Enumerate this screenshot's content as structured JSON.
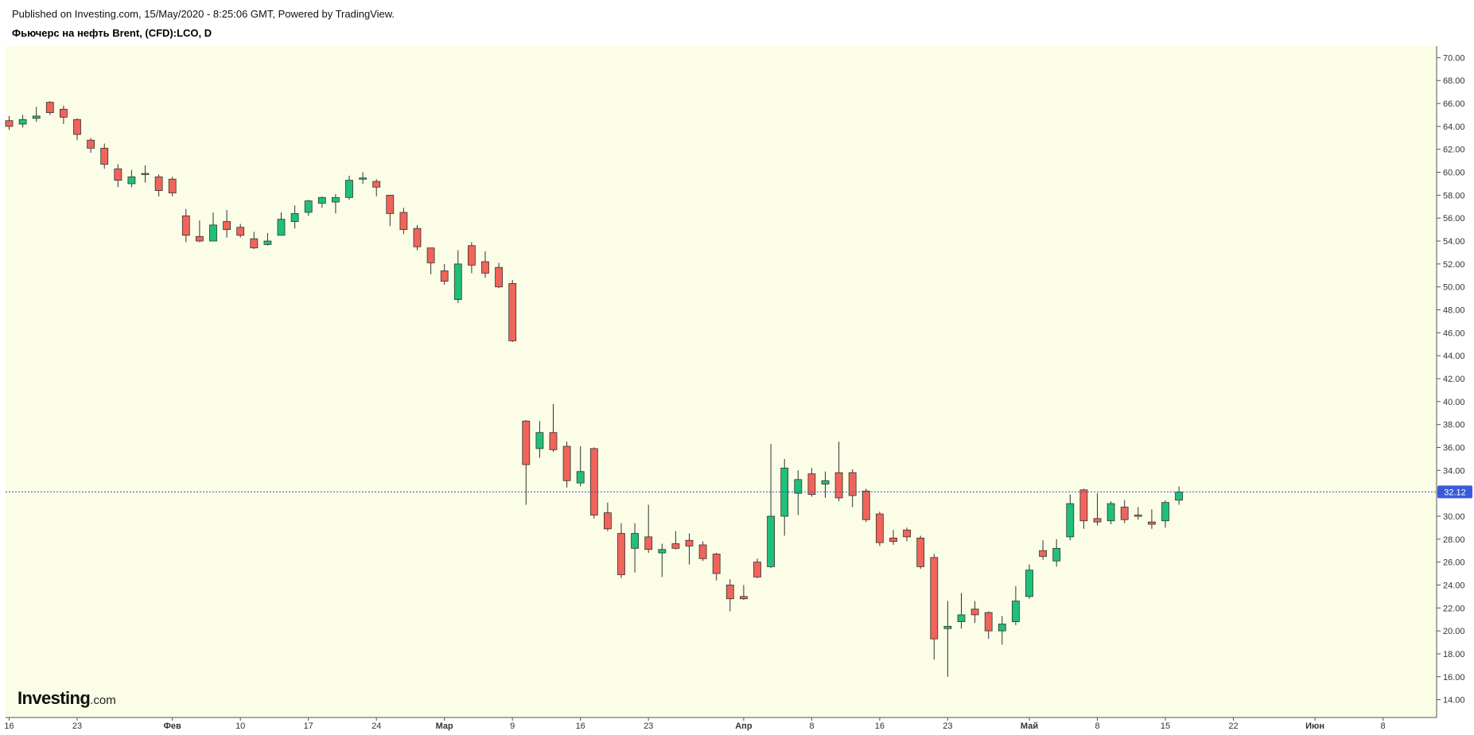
{
  "header": {
    "published": "Published on Investing.com, 15/May/2020 - 8:25:06 GMT, Powered by TradingView.",
    "title": "Фьючерс на нефть Brent, (CFD):LCO, D"
  },
  "logo": {
    "main": "Investing",
    "suffix": ".com"
  },
  "colors": {
    "background": "#fbfde6",
    "up": "#1fc07a",
    "down": "#f0645a",
    "wick": "#333333",
    "last_price_line": "#3355cc",
    "last_price_label": "#3b5bdb"
  },
  "chart_data": {
    "type": "candlestick",
    "title": "Фьючерс на нефть Brent, (CFD):LCO, D",
    "ylim": [
      13,
      71
    ],
    "y_ticks": [
      "14.00",
      "16.00",
      "18.00",
      "20.00",
      "22.00",
      "24.00",
      "26.00",
      "28.00",
      "30.00",
      "32.00",
      "34.00",
      "36.00",
      "38.00",
      "40.00",
      "42.00",
      "44.00",
      "46.00",
      "48.00",
      "50.00",
      "52.00",
      "54.00",
      "56.00",
      "58.00",
      "60.00",
      "62.00",
      "64.00",
      "66.00",
      "68.00",
      "70.00"
    ],
    "x_ticks": [
      {
        "label": "16",
        "slot": 0,
        "bold": false
      },
      {
        "label": "23",
        "slot": 5,
        "bold": false
      },
      {
        "label": "Фев",
        "slot": 12,
        "bold": true
      },
      {
        "label": "10",
        "slot": 17,
        "bold": false
      },
      {
        "label": "17",
        "slot": 22,
        "bold": false
      },
      {
        "label": "24",
        "slot": 27,
        "bold": false
      },
      {
        "label": "Мар",
        "slot": 32,
        "bold": true
      },
      {
        "label": "9",
        "slot": 37,
        "bold": false
      },
      {
        "label": "16",
        "slot": 42,
        "bold": false
      },
      {
        "label": "23",
        "slot": 47,
        "bold": false
      },
      {
        "label": "Апр",
        "slot": 54,
        "bold": true
      },
      {
        "label": "8",
        "slot": 59,
        "bold": false
      },
      {
        "label": "16",
        "slot": 64,
        "bold": false
      },
      {
        "label": "23",
        "slot": 69,
        "bold": false
      },
      {
        "label": "Май",
        "slot": 75,
        "bold": true
      },
      {
        "label": "8",
        "slot": 80,
        "bold": false
      },
      {
        "label": "15",
        "slot": 85,
        "bold": false
      },
      {
        "label": "22",
        "slot": 90,
        "bold": false
      },
      {
        "label": "Июн",
        "slot": 96,
        "bold": true
      },
      {
        "label": "8",
        "slot": 101,
        "bold": false
      }
    ],
    "last_price": "32.12",
    "candles": [
      {
        "slot": 0,
        "o": 64.5,
        "h": 64.9,
        "l": 63.7,
        "c": 64.0
      },
      {
        "slot": 1,
        "o": 64.2,
        "h": 65.0,
        "l": 63.9,
        "c": 64.6
      },
      {
        "slot": 2,
        "o": 64.7,
        "h": 65.7,
        "l": 64.4,
        "c": 64.9
      },
      {
        "slot": 3,
        "o": 66.1,
        "h": 66.2,
        "l": 65.0,
        "c": 65.2
      },
      {
        "slot": 4,
        "o": 65.5,
        "h": 65.8,
        "l": 64.2,
        "c": 64.8
      },
      {
        "slot": 5,
        "o": 64.6,
        "h": 64.7,
        "l": 62.8,
        "c": 63.3
      },
      {
        "slot": 6,
        "o": 62.8,
        "h": 63.0,
        "l": 61.7,
        "c": 62.1
      },
      {
        "slot": 7,
        "o": 62.1,
        "h": 62.5,
        "l": 60.3,
        "c": 60.7
      },
      {
        "slot": 8,
        "o": 60.3,
        "h": 60.7,
        "l": 58.7,
        "c": 59.3
      },
      {
        "slot": 9,
        "o": 59.0,
        "h": 60.2,
        "l": 58.7,
        "c": 59.6
      },
      {
        "slot": 10,
        "o": 59.8,
        "h": 60.6,
        "l": 59.1,
        "c": 59.9
      },
      {
        "slot": 11,
        "o": 59.6,
        "h": 59.8,
        "l": 57.9,
        "c": 58.4
      },
      {
        "slot": 12,
        "o": 59.4,
        "h": 59.6,
        "l": 57.9,
        "c": 58.2
      },
      {
        "slot": 13,
        "o": 56.2,
        "h": 56.8,
        "l": 53.9,
        "c": 54.5
      },
      {
        "slot": 14,
        "o": 54.4,
        "h": 55.8,
        "l": 53.9,
        "c": 54.0
      },
      {
        "slot": 15,
        "o": 54.0,
        "h": 56.5,
        "l": 54.0,
        "c": 55.4
      },
      {
        "slot": 16,
        "o": 55.7,
        "h": 56.7,
        "l": 54.3,
        "c": 55.0
      },
      {
        "slot": 17,
        "o": 55.2,
        "h": 55.5,
        "l": 54.3,
        "c": 54.5
      },
      {
        "slot": 18,
        "o": 54.2,
        "h": 54.8,
        "l": 53.3,
        "c": 53.4
      },
      {
        "slot": 19,
        "o": 53.7,
        "h": 54.7,
        "l": 53.6,
        "c": 54.0
      },
      {
        "slot": 20,
        "o": 54.5,
        "h": 56.5,
        "l": 54.5,
        "c": 55.9
      },
      {
        "slot": 21,
        "o": 55.7,
        "h": 57.1,
        "l": 55.1,
        "c": 56.4
      },
      {
        "slot": 22,
        "o": 56.5,
        "h": 57.6,
        "l": 56.2,
        "c": 57.5
      },
      {
        "slot": 23,
        "o": 57.3,
        "h": 57.9,
        "l": 56.9,
        "c": 57.8
      },
      {
        "slot": 24,
        "o": 57.4,
        "h": 58.1,
        "l": 56.4,
        "c": 57.8
      },
      {
        "slot": 25,
        "o": 57.8,
        "h": 59.7,
        "l": 57.6,
        "c": 59.3
      },
      {
        "slot": 26,
        "o": 59.4,
        "h": 60.0,
        "l": 59.0,
        "c": 59.5
      },
      {
        "slot": 27,
        "o": 59.2,
        "h": 59.4,
        "l": 57.9,
        "c": 58.7
      },
      {
        "slot": 28,
        "o": 58.0,
        "h": 58.0,
        "l": 55.3,
        "c": 56.4
      },
      {
        "slot": 29,
        "o": 56.5,
        "h": 56.9,
        "l": 54.6,
        "c": 55.0
      },
      {
        "slot": 30,
        "o": 55.1,
        "h": 55.4,
        "l": 53.2,
        "c": 53.5
      },
      {
        "slot": 31,
        "o": 53.4,
        "h": 53.4,
        "l": 51.1,
        "c": 52.1
      },
      {
        "slot": 32,
        "o": 51.4,
        "h": 52.0,
        "l": 50.2,
        "c": 50.5
      },
      {
        "slot": 33,
        "o": 48.9,
        "h": 53.2,
        "l": 48.6,
        "c": 52.0
      },
      {
        "slot": 34,
        "o": 53.6,
        "h": 53.9,
        "l": 51.2,
        "c": 51.9
      },
      {
        "slot": 35,
        "o": 52.2,
        "h": 53.1,
        "l": 50.8,
        "c": 51.2
      },
      {
        "slot": 36,
        "o": 51.7,
        "h": 52.1,
        "l": 49.9,
        "c": 50.0
      },
      {
        "slot": 37,
        "o": 50.3,
        "h": 50.6,
        "l": 45.2,
        "c": 45.3
      },
      {
        "slot": 38,
        "o": 38.3,
        "h": 38.4,
        "l": 31.0,
        "c": 34.5
      },
      {
        "slot": 39,
        "o": 35.9,
        "h": 38.3,
        "l": 35.1,
        "c": 37.3
      },
      {
        "slot": 40,
        "o": 37.3,
        "h": 39.8,
        "l": 35.6,
        "c": 35.8
      },
      {
        "slot": 41,
        "o": 36.1,
        "h": 36.5,
        "l": 32.5,
        "c": 33.1
      },
      {
        "slot": 42,
        "o": 32.9,
        "h": 36.1,
        "l": 32.6,
        "c": 33.9
      },
      {
        "slot": 43,
        "o": 35.9,
        "h": 36.0,
        "l": 29.8,
        "c": 30.1
      },
      {
        "slot": 44,
        "o": 30.3,
        "h": 31.2,
        "l": 28.7,
        "c": 28.9
      },
      {
        "slot": 45,
        "o": 28.5,
        "h": 29.4,
        "l": 24.6,
        "c": 24.9
      },
      {
        "slot": 46,
        "o": 27.2,
        "h": 29.4,
        "l": 25.1,
        "c": 28.5
      },
      {
        "slot": 47,
        "o": 28.2,
        "h": 31.0,
        "l": 26.8,
        "c": 27.1
      },
      {
        "slot": 48,
        "o": 26.8,
        "h": 27.6,
        "l": 24.7,
        "c": 27.1
      },
      {
        "slot": 49,
        "o": 27.6,
        "h": 28.7,
        "l": 27.1,
        "c": 27.2
      },
      {
        "slot": 50,
        "o": 27.9,
        "h": 28.5,
        "l": 25.8,
        "c": 27.4
      },
      {
        "slot": 51,
        "o": 27.5,
        "h": 27.8,
        "l": 26.1,
        "c": 26.3
      },
      {
        "slot": 52,
        "o": 26.7,
        "h": 26.8,
        "l": 24.4,
        "c": 25.0
      },
      {
        "slot": 53,
        "o": 24.0,
        "h": 24.5,
        "l": 21.7,
        "c": 22.8
      },
      {
        "slot": 54,
        "o": 23.0,
        "h": 24.0,
        "l": 22.7,
        "c": 22.8
      },
      {
        "slot": 55,
        "o": 26.0,
        "h": 26.3,
        "l": 24.6,
        "c": 24.7
      },
      {
        "slot": 56,
        "o": 25.6,
        "h": 36.3,
        "l": 25.5,
        "c": 30.0
      },
      {
        "slot": 57,
        "o": 30.0,
        "h": 35.0,
        "l": 28.3,
        "c": 34.2
      },
      {
        "slot": 58,
        "o": 32.0,
        "h": 34.0,
        "l": 30.1,
        "c": 33.2
      },
      {
        "slot": 59,
        "o": 33.7,
        "h": 34.2,
        "l": 31.7,
        "c": 31.9
      },
      {
        "slot": 60,
        "o": 32.8,
        "h": 33.9,
        "l": 31.6,
        "c": 33.1
      },
      {
        "slot": 61,
        "o": 33.8,
        "h": 36.5,
        "l": 31.3,
        "c": 31.6
      },
      {
        "slot": 62,
        "o": 33.8,
        "h": 34.1,
        "l": 30.8,
        "c": 31.8
      },
      {
        "slot": 63,
        "o": 32.2,
        "h": 32.4,
        "l": 29.5,
        "c": 29.7
      },
      {
        "slot": 64,
        "o": 30.2,
        "h": 30.4,
        "l": 27.4,
        "c": 27.7
      },
      {
        "slot": 65,
        "o": 28.1,
        "h": 28.8,
        "l": 27.5,
        "c": 27.8
      },
      {
        "slot": 66,
        "o": 28.8,
        "h": 29.0,
        "l": 27.8,
        "c": 28.2
      },
      {
        "slot": 67,
        "o": 28.1,
        "h": 28.3,
        "l": 25.4,
        "c": 25.6
      },
      {
        "slot": 68,
        "o": 26.4,
        "h": 26.7,
        "l": 17.5,
        "c": 19.3
      },
      {
        "slot": 69,
        "o": 20.2,
        "h": 22.6,
        "l": 16.0,
        "c": 20.4
      },
      {
        "slot": 70,
        "o": 20.8,
        "h": 23.3,
        "l": 20.2,
        "c": 21.4
      },
      {
        "slot": 71,
        "o": 21.9,
        "h": 22.6,
        "l": 20.7,
        "c": 21.4
      },
      {
        "slot": 72,
        "o": 21.6,
        "h": 21.7,
        "l": 19.3,
        "c": 20.0
      },
      {
        "slot": 73,
        "o": 20.0,
        "h": 21.3,
        "l": 18.8,
        "c": 20.6
      },
      {
        "slot": 74,
        "o": 20.8,
        "h": 23.9,
        "l": 20.5,
        "c": 22.6
      },
      {
        "slot": 75,
        "o": 23.0,
        "h": 25.8,
        "l": 22.8,
        "c": 25.3
      },
      {
        "slot": 76,
        "o": 27.0,
        "h": 27.9,
        "l": 26.2,
        "c": 26.5
      },
      {
        "slot": 77,
        "o": 26.1,
        "h": 28.0,
        "l": 25.6,
        "c": 27.2
      },
      {
        "slot": 78,
        "o": 28.2,
        "h": 31.9,
        "l": 27.9,
        "c": 31.1
      },
      {
        "slot": 79,
        "o": 32.3,
        "h": 32.4,
        "l": 28.9,
        "c": 29.6
      },
      {
        "slot": 80,
        "o": 29.8,
        "h": 32.0,
        "l": 29.2,
        "c": 29.5
      },
      {
        "slot": 81,
        "o": 29.6,
        "h": 31.3,
        "l": 29.3,
        "c": 31.1
      },
      {
        "slot": 82,
        "o": 30.8,
        "h": 31.4,
        "l": 29.4,
        "c": 29.7
      },
      {
        "slot": 83,
        "o": 30.1,
        "h": 30.8,
        "l": 29.7,
        "c": 30.0
      },
      {
        "slot": 84,
        "o": 29.5,
        "h": 30.6,
        "l": 28.9,
        "c": 29.3
      },
      {
        "slot": 85,
        "o": 29.6,
        "h": 31.4,
        "l": 29.0,
        "c": 31.2
      },
      {
        "slot": 86,
        "o": 31.4,
        "h": 32.6,
        "l": 31.0,
        "c": 32.1
      }
    ]
  }
}
